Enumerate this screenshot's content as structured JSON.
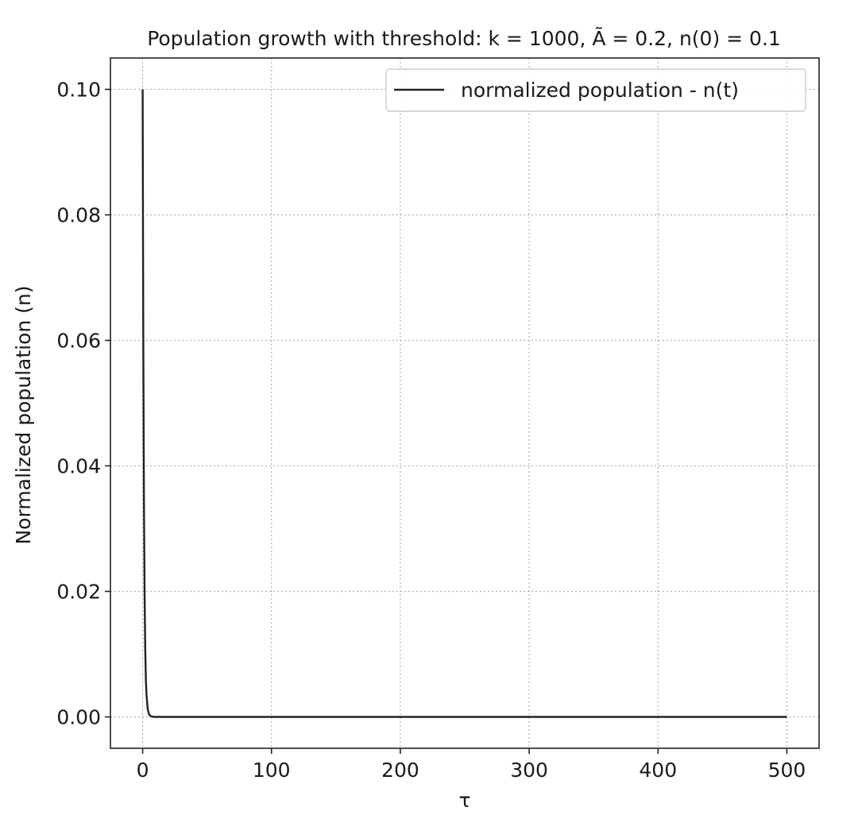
{
  "chart_data": {
    "type": "line",
    "title": "Population growth with threshold: k = 1000, Ã = 0.2, n(0) = 0.1",
    "xlabel": "τ",
    "ylabel": "Normalized population (n)",
    "xlim": [
      -25,
      525
    ],
    "ylim": [
      -0.005,
      0.105
    ],
    "xticks": [
      0,
      100,
      200,
      300,
      400,
      500
    ],
    "xtick_labels": [
      "0",
      "100",
      "200",
      "300",
      "400",
      "500"
    ],
    "yticks": [
      0.0,
      0.02,
      0.04,
      0.06,
      0.08,
      0.1
    ],
    "ytick_labels": [
      "0.00",
      "0.02",
      "0.04",
      "0.06",
      "0.08",
      "0.10"
    ],
    "grid": true,
    "legend_position": "top-right",
    "series": [
      {
        "name": "normalized population - n(t)",
        "color": "#222222",
        "x": [
          0,
          0.5,
          1,
          1.5,
          2,
          2.5,
          3,
          4,
          5,
          6,
          8,
          10,
          20,
          50,
          100,
          200,
          300,
          400,
          500
        ],
        "y": [
          0.1,
          0.06,
          0.035,
          0.02,
          0.011,
          0.006,
          0.0035,
          0.0012,
          0.0004,
          0.00015,
          2e-05,
          0.0,
          0.0,
          0.0,
          0.0,
          0.0,
          0.0,
          0.0,
          0.0
        ]
      }
    ]
  }
}
